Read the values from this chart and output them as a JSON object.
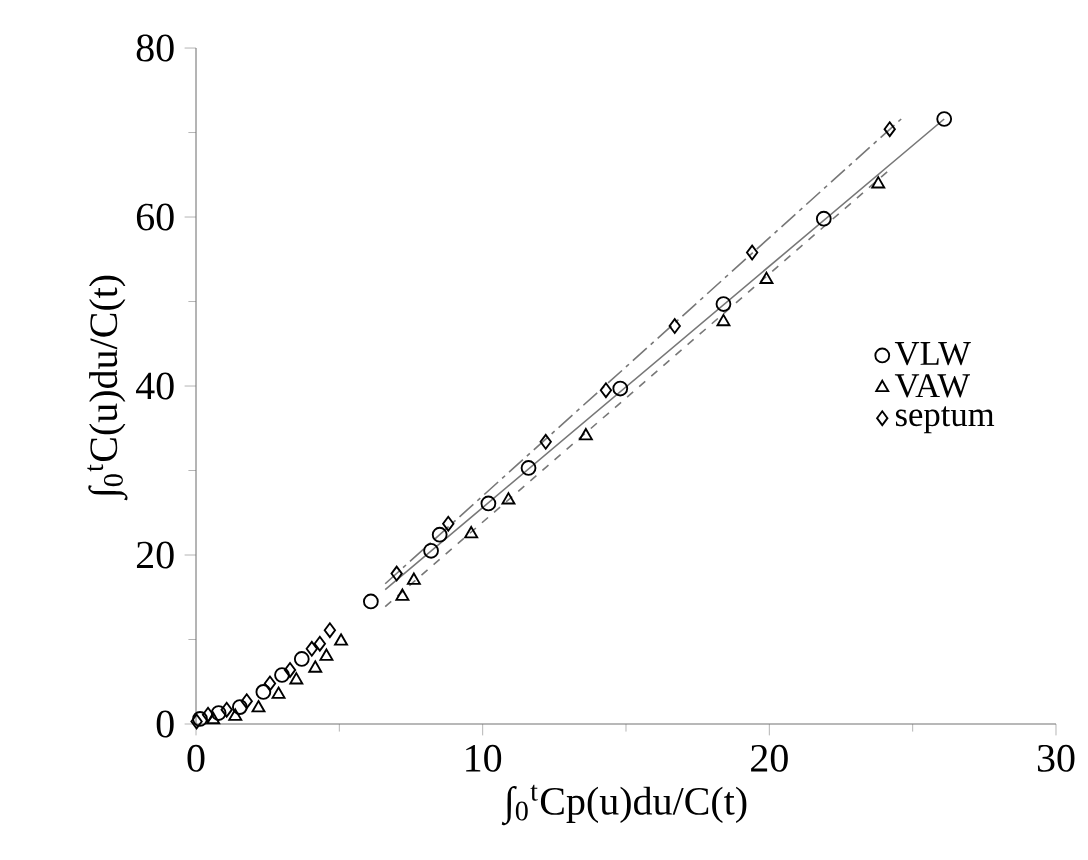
{
  "chart_data": {
    "type": "scatter",
    "xlabel": "∫$_{0}$$^{t}$Cp(u)du/C(t)",
    "ylabel": "∫$_{0}$$^{t}$C(u)du/C(t)",
    "xlim": [
      0,
      30
    ],
    "ylim": [
      0,
      80
    ],
    "xticks": [
      0,
      10,
      20,
      30
    ],
    "yticks": [
      0,
      20,
      40,
      60,
      80
    ],
    "grid": false,
    "legend": "right",
    "series": [
      {
        "name": "VLW",
        "color": "#000000",
        "marker": "circle",
        "x": [
          0.14,
          0.79,
          1.53,
          2.35,
          3.0,
          3.69,
          6.1,
          8.2,
          8.5,
          10.2,
          11.6,
          14.8,
          18.4,
          21.9,
          26.1
        ],
        "values": [
          0.6,
          1.3,
          2.0,
          3.8,
          5.8,
          7.7,
          14.5,
          20.5,
          22.4,
          26.1,
          30.3,
          39.7,
          49.7,
          59.8,
          71.6
        ]
      },
      {
        "name": "VAW",
        "color": "#000000",
        "marker": "triangle",
        "x": [
          0.6,
          1.37,
          2.18,
          2.88,
          3.5,
          4.16,
          4.55,
          5.06,
          7.2,
          7.6,
          9.6,
          10.9,
          13.6,
          18.4,
          19.9,
          23.8
        ],
        "values": [
          0.5,
          0.9,
          1.9,
          3.5,
          5.2,
          6.6,
          8.0,
          9.8,
          15.1,
          17.0,
          22.5,
          26.5,
          34.1,
          47.6,
          52.6,
          63.9
        ]
      },
      {
        "name": "septum",
        "color": "#000000",
        "marker": "diamond",
        "x": [
          0.02,
          0.42,
          1.07,
          1.77,
          2.58,
          3.28,
          4.04,
          4.32,
          4.67,
          7.0,
          8.8,
          12.2,
          14.3,
          16.7,
          19.4,
          24.2
        ],
        "values": [
          0.3,
          1.1,
          1.7,
          2.7,
          4.8,
          6.4,
          8.9,
          9.5,
          11.1,
          17.8,
          23.7,
          33.4,
          39.5,
          47.1,
          55.8,
          70.4
        ]
      },
      {
        "type": "line",
        "color": "#777777",
        "line_style": "solid",
        "marker": "none",
        "x": [
          6.6,
          26.1
        ],
        "values": [
          15.9,
          71.6
        ]
      },
      {
        "type": "line",
        "color": "#777777",
        "line_style": "dashed",
        "marker": "none",
        "x": [
          6.6,
          24.3
        ],
        "values": [
          13.9,
          65.9
        ]
      },
      {
        "type": "line",
        "color": "#777777",
        "line_style": "dashdot",
        "marker": "none",
        "x": [
          6.6,
          24.6
        ],
        "values": [
          16.6,
          71.6
        ]
      }
    ]
  }
}
